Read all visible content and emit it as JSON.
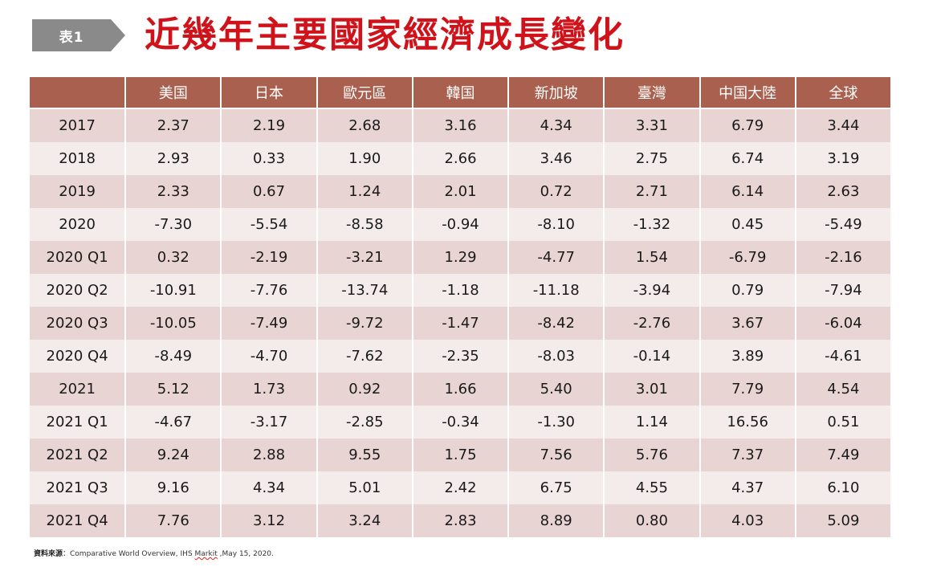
{
  "header": {
    "tag_label": "表1",
    "title": "近幾年主要國家經濟成長變化"
  },
  "table": {
    "corner": "",
    "columns": [
      "美国",
      "日本",
      "歐元區",
      "韓国",
      "新加坡",
      "臺灣",
      "中国大陸",
      "全球"
    ],
    "rows": [
      {
        "label": "2017",
        "values": [
          "2.37",
          "2.19",
          "2.68",
          "3.16",
          "4.34",
          "3.31",
          "6.79",
          "3.44"
        ]
      },
      {
        "label": "2018",
        "values": [
          "2.93",
          "0.33",
          "1.90",
          "2.66",
          "3.46",
          "2.75",
          "6.74",
          "3.19"
        ]
      },
      {
        "label": "2019",
        "values": [
          "2.33",
          "0.67",
          "1.24",
          "2.01",
          "0.72",
          "2.71",
          "6.14",
          "2.63"
        ]
      },
      {
        "label": "2020",
        "values": [
          "-7.30",
          "-5.54",
          "-8.58",
          "-0.94",
          "-8.10",
          "-1.32",
          "0.45",
          "-5.49"
        ]
      },
      {
        "label": "2020 Q1",
        "values": [
          "0.32",
          "-2.19",
          "-3.21",
          "1.29",
          "-4.77",
          "1.54",
          "-6.79",
          "-2.16"
        ]
      },
      {
        "label": "2020 Q2",
        "values": [
          "-10.91",
          "-7.76",
          "-13.74",
          "-1.18",
          "-11.18",
          "-3.94",
          "0.79",
          "-7.94"
        ]
      },
      {
        "label": "2020 Q3",
        "values": [
          "-10.05",
          "-7.49",
          "-9.72",
          "-1.47",
          "-8.42",
          "-2.76",
          "3.67",
          "-6.04"
        ]
      },
      {
        "label": "2020 Q4",
        "values": [
          "-8.49",
          "-4.70",
          "-7.62",
          "-2.35",
          "-8.03",
          "-0.14",
          "3.89",
          "-4.61"
        ]
      },
      {
        "label": "2021",
        "values": [
          "5.12",
          "1.73",
          "0.92",
          "1.66",
          "5.40",
          "3.01",
          "7.79",
          "4.54"
        ]
      },
      {
        "label": "2021 Q1",
        "values": [
          "-4.67",
          "-3.17",
          "-2.85",
          "-0.34",
          "-1.30",
          "1.14",
          "16.56",
          "0.51"
        ]
      },
      {
        "label": "2021 Q2",
        "values": [
          "9.24",
          "2.88",
          "9.55",
          "1.75",
          "7.56",
          "5.76",
          "7.37",
          "7.49"
        ]
      },
      {
        "label": "2021 Q3",
        "values": [
          "9.16",
          "4.34",
          "5.01",
          "2.42",
          "6.75",
          "4.55",
          "4.37",
          "6.10"
        ]
      },
      {
        "label": "2021 Q4",
        "values": [
          "7.76",
          "3.12",
          "3.24",
          "2.83",
          "8.89",
          "0.80",
          "4.03",
          "5.09"
        ]
      }
    ]
  },
  "source": {
    "label": "資料來源",
    "text_before": "：Comparative World Overview, IHS ",
    "underlined": "Markit",
    "text_after": " ,May 15, 2020."
  },
  "colors": {
    "header_bg": "#a9604f",
    "row_odd": "#e8d4d2",
    "row_even": "#f4eceb",
    "title": "#d0121b",
    "tag_bg": "#8a8a8a"
  }
}
